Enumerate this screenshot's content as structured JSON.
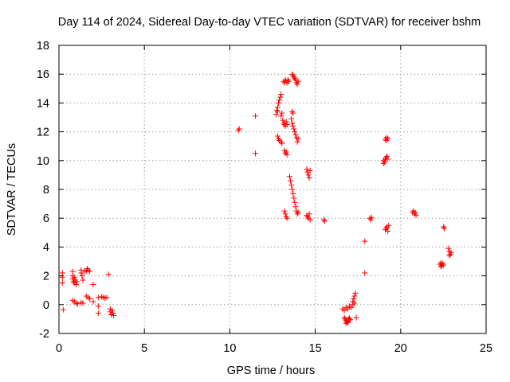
{
  "chart_data": {
    "type": "scatter",
    "title": "Day 114 of 2024, Sidereal Day-to-day VTEC variation (SDTVAR) for receiver bshm",
    "xlabel": "GPS time / hours",
    "ylabel": "SDTVAR / TECUs",
    "xlim": [
      0,
      25
    ],
    "ylim": [
      -2,
      18
    ],
    "xticks": [
      "0",
      "5",
      "10",
      "15",
      "20",
      "25"
    ],
    "yticks": [
      "-2",
      "0",
      "2",
      "4",
      "6",
      "8",
      "10",
      "12",
      "14",
      "16",
      "18"
    ],
    "grid": true,
    "marker": "+",
    "marker_color": "#ff0000",
    "series": [
      {
        "name": "SDTVAR",
        "points": [
          [
            0.2,
            2.2
          ],
          [
            0.2,
            1.9
          ],
          [
            0.2,
            1.5
          ],
          [
            0.25,
            -0.35
          ],
          [
            0.8,
            2.3
          ],
          [
            0.8,
            2.0
          ],
          [
            0.8,
            1.8
          ],
          [
            0.85,
            1.6
          ],
          [
            0.9,
            1.5
          ],
          [
            0.95,
            1.7
          ],
          [
            1.0,
            1.4
          ],
          [
            1.05,
            1.6
          ],
          [
            0.9,
            1.9
          ],
          [
            0.8,
            0.3
          ],
          [
            0.9,
            0.2
          ],
          [
            1.0,
            0.1
          ],
          [
            1.1,
            0.05
          ],
          [
            1.3,
            0.15
          ],
          [
            1.4,
            0.1
          ],
          [
            1.3,
            2.4
          ],
          [
            1.3,
            2.2
          ],
          [
            1.35,
            2.0
          ],
          [
            1.4,
            1.7
          ],
          [
            1.5,
            2.3
          ],
          [
            1.6,
            2.35
          ],
          [
            1.7,
            2.4
          ],
          [
            1.8,
            2.3
          ],
          [
            1.65,
            2.5
          ],
          [
            1.6,
            0.6
          ],
          [
            1.7,
            0.5
          ],
          [
            1.8,
            0.4
          ],
          [
            2.0,
            1.4
          ],
          [
            2.0,
            0.2
          ],
          [
            2.3,
            0.5
          ],
          [
            2.3,
            -0.1
          ],
          [
            2.3,
            -0.6
          ],
          [
            2.5,
            0.55
          ],
          [
            2.6,
            0.5
          ],
          [
            2.7,
            0.45
          ],
          [
            2.8,
            0.5
          ],
          [
            2.9,
            2.1
          ],
          [
            3.0,
            -0.3
          ],
          [
            3.0,
            -0.5
          ],
          [
            3.1,
            -0.4
          ],
          [
            3.05,
            -0.7
          ],
          [
            3.15,
            -0.6
          ],
          [
            3.2,
            -0.75
          ],
          [
            10.5,
            12.1
          ],
          [
            10.55,
            12.2
          ],
          [
            11.5,
            13.1
          ],
          [
            11.5,
            10.5
          ],
          [
            12.7,
            13.2
          ],
          [
            12.75,
            13.5
          ],
          [
            12.8,
            13.7
          ],
          [
            12.85,
            14.0
          ],
          [
            12.9,
            14.2
          ],
          [
            12.95,
            14.4
          ],
          [
            13.0,
            14.6
          ],
          [
            12.8,
            13.4
          ],
          [
            13.0,
            13.1
          ],
          [
            13.05,
            13.3
          ],
          [
            12.8,
            11.7
          ],
          [
            12.85,
            11.5
          ],
          [
            12.9,
            11.4
          ],
          [
            13.0,
            11.3
          ],
          [
            13.05,
            11.2
          ],
          [
            13.1,
            12.8
          ],
          [
            13.15,
            12.6
          ],
          [
            13.2,
            12.5
          ],
          [
            13.25,
            12.4
          ],
          [
            13.3,
            12.7
          ],
          [
            13.35,
            12.5
          ],
          [
            13.15,
            15.5
          ],
          [
            13.2,
            15.4
          ],
          [
            13.25,
            15.6
          ],
          [
            13.3,
            15.5
          ],
          [
            13.35,
            15.4
          ],
          [
            13.4,
            15.6
          ],
          [
            13.45,
            15.5
          ],
          [
            13.2,
            10.7
          ],
          [
            13.25,
            10.5
          ],
          [
            13.3,
            10.6
          ],
          [
            13.35,
            10.4
          ],
          [
            13.2,
            6.5
          ],
          [
            13.25,
            6.3
          ],
          [
            13.3,
            6.1
          ],
          [
            13.35,
            6.0
          ],
          [
            13.5,
            8.9
          ],
          [
            13.55,
            8.6
          ],
          [
            13.6,
            8.3
          ],
          [
            13.65,
            8.0
          ],
          [
            13.7,
            7.7
          ],
          [
            13.75,
            7.4
          ],
          [
            13.8,
            7.1
          ],
          [
            13.85,
            6.8
          ],
          [
            13.9,
            6.5
          ],
          [
            13.95,
            6.3
          ],
          [
            14.0,
            6.4
          ],
          [
            13.6,
            12.9
          ],
          [
            13.65,
            12.6
          ],
          [
            13.7,
            12.4
          ],
          [
            13.75,
            12.2
          ],
          [
            13.8,
            12.0
          ],
          [
            13.85,
            11.8
          ],
          [
            13.9,
            11.6
          ],
          [
            13.95,
            11.3
          ],
          [
            14.0,
            11.5
          ],
          [
            13.7,
            13.3
          ],
          [
            13.65,
            13.4
          ],
          [
            13.65,
            16.0
          ],
          [
            13.7,
            15.9
          ],
          [
            13.75,
            15.8
          ],
          [
            13.8,
            15.7
          ],
          [
            13.85,
            15.6
          ],
          [
            13.9,
            15.4
          ],
          [
            13.95,
            15.3
          ],
          [
            14.0,
            15.5
          ],
          [
            14.5,
            9.4
          ],
          [
            14.55,
            9.2
          ],
          [
            14.6,
            9.0
          ],
          [
            14.65,
            8.8
          ],
          [
            14.7,
            9.3
          ],
          [
            14.5,
            6.2
          ],
          [
            14.55,
            6.1
          ],
          [
            14.6,
            6.0
          ],
          [
            14.65,
            6.3
          ],
          [
            14.7,
            5.9
          ],
          [
            15.5,
            5.9
          ],
          [
            15.55,
            5.8
          ],
          [
            16.6,
            -0.3
          ],
          [
            16.7,
            -0.4
          ],
          [
            16.8,
            -0.2
          ],
          [
            16.9,
            -0.3
          ],
          [
            17.0,
            -0.1
          ],
          [
            17.1,
            -0.2
          ],
          [
            16.7,
            -0.9
          ],
          [
            16.75,
            -1.0
          ],
          [
            16.8,
            -1.1
          ],
          [
            16.85,
            -1.2
          ],
          [
            16.9,
            -1.15
          ],
          [
            16.95,
            -1.0
          ],
          [
            17.0,
            -0.95
          ],
          [
            17.05,
            -1.05
          ],
          [
            16.8,
            -1.3
          ],
          [
            16.9,
            -1.25
          ],
          [
            17.2,
            0.2
          ],
          [
            17.25,
            0.4
          ],
          [
            17.3,
            0.6
          ],
          [
            17.35,
            0.8
          ],
          [
            17.3,
            0.1
          ],
          [
            17.2,
            0.0
          ],
          [
            17.4,
            -0.9
          ],
          [
            17.9,
            4.4
          ],
          [
            17.9,
            2.2
          ],
          [
            18.2,
            6.0
          ],
          [
            18.25,
            5.9
          ],
          [
            18.3,
            6.05
          ],
          [
            19.0,
            10.0
          ],
          [
            19.05,
            9.9
          ],
          [
            19.1,
            10.1
          ],
          [
            19.15,
            10.2
          ],
          [
            19.2,
            10.3
          ],
          [
            19.25,
            10.1
          ],
          [
            19.0,
            9.8
          ],
          [
            19.1,
            11.5
          ],
          [
            19.15,
            11.4
          ],
          [
            19.2,
            11.6
          ],
          [
            19.25,
            11.5
          ],
          [
            19.1,
            5.2
          ],
          [
            19.15,
            5.3
          ],
          [
            19.2,
            5.4
          ],
          [
            19.25,
            5.1
          ],
          [
            19.3,
            5.5
          ],
          [
            20.7,
            6.4
          ],
          [
            20.75,
            6.5
          ],
          [
            20.8,
            6.3
          ],
          [
            20.85,
            6.4
          ],
          [
            20.9,
            6.2
          ],
          [
            22.3,
            2.8
          ],
          [
            22.35,
            2.9
          ],
          [
            22.4,
            2.7
          ],
          [
            22.45,
            2.85
          ],
          [
            22.5,
            2.75
          ],
          [
            22.35,
            2.65
          ],
          [
            22.5,
            5.4
          ],
          [
            22.55,
            5.3
          ],
          [
            22.8,
            3.9
          ],
          [
            22.85,
            3.7
          ],
          [
            22.9,
            3.5
          ],
          [
            22.95,
            3.6
          ],
          [
            22.85,
            3.4
          ]
        ]
      }
    ]
  }
}
